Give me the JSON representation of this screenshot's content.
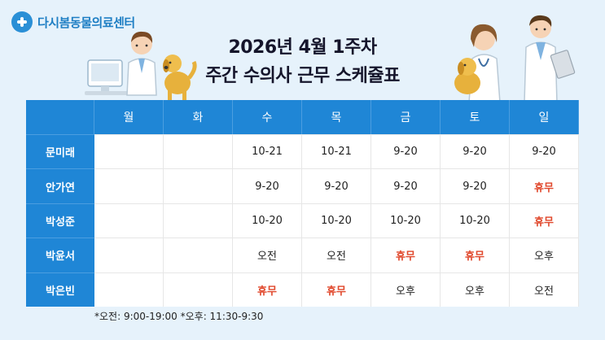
{
  "brand": {
    "name": "다시봄동물의료센터"
  },
  "title": {
    "line1": "2026년 4월 1주차",
    "line2": "주간 수의사 근무 스케쥴표"
  },
  "days": [
    "월",
    "화",
    "수",
    "목",
    "금",
    "토",
    "일"
  ],
  "rows": [
    {
      "name": "문미래",
      "cells": [
        "",
        "",
        "10-21",
        "10-21",
        "9-20",
        "9-20",
        "9-20"
      ]
    },
    {
      "name": "안가연",
      "cells": [
        "",
        "",
        "9-20",
        "9-20",
        "9-20",
        "9-20",
        "휴무"
      ]
    },
    {
      "name": "박성준",
      "cells": [
        "",
        "",
        "10-20",
        "10-20",
        "10-20",
        "10-20",
        "휴무"
      ]
    },
    {
      "name": "박윤서",
      "cells": [
        "",
        "",
        "오전",
        "오전",
        "휴무",
        "휴무",
        "오후"
      ]
    },
    {
      "name": "박은빈",
      "cells": [
        "",
        "",
        "휴무",
        "휴무",
        "오후",
        "오후",
        "오전"
      ]
    }
  ],
  "note": "*오전: 9:00-19:00   *오후: 11:30-9:30",
  "colors": {
    "header": "#1f86d6",
    "off_day": "#e0472b",
    "background": "#e6f2fb"
  }
}
